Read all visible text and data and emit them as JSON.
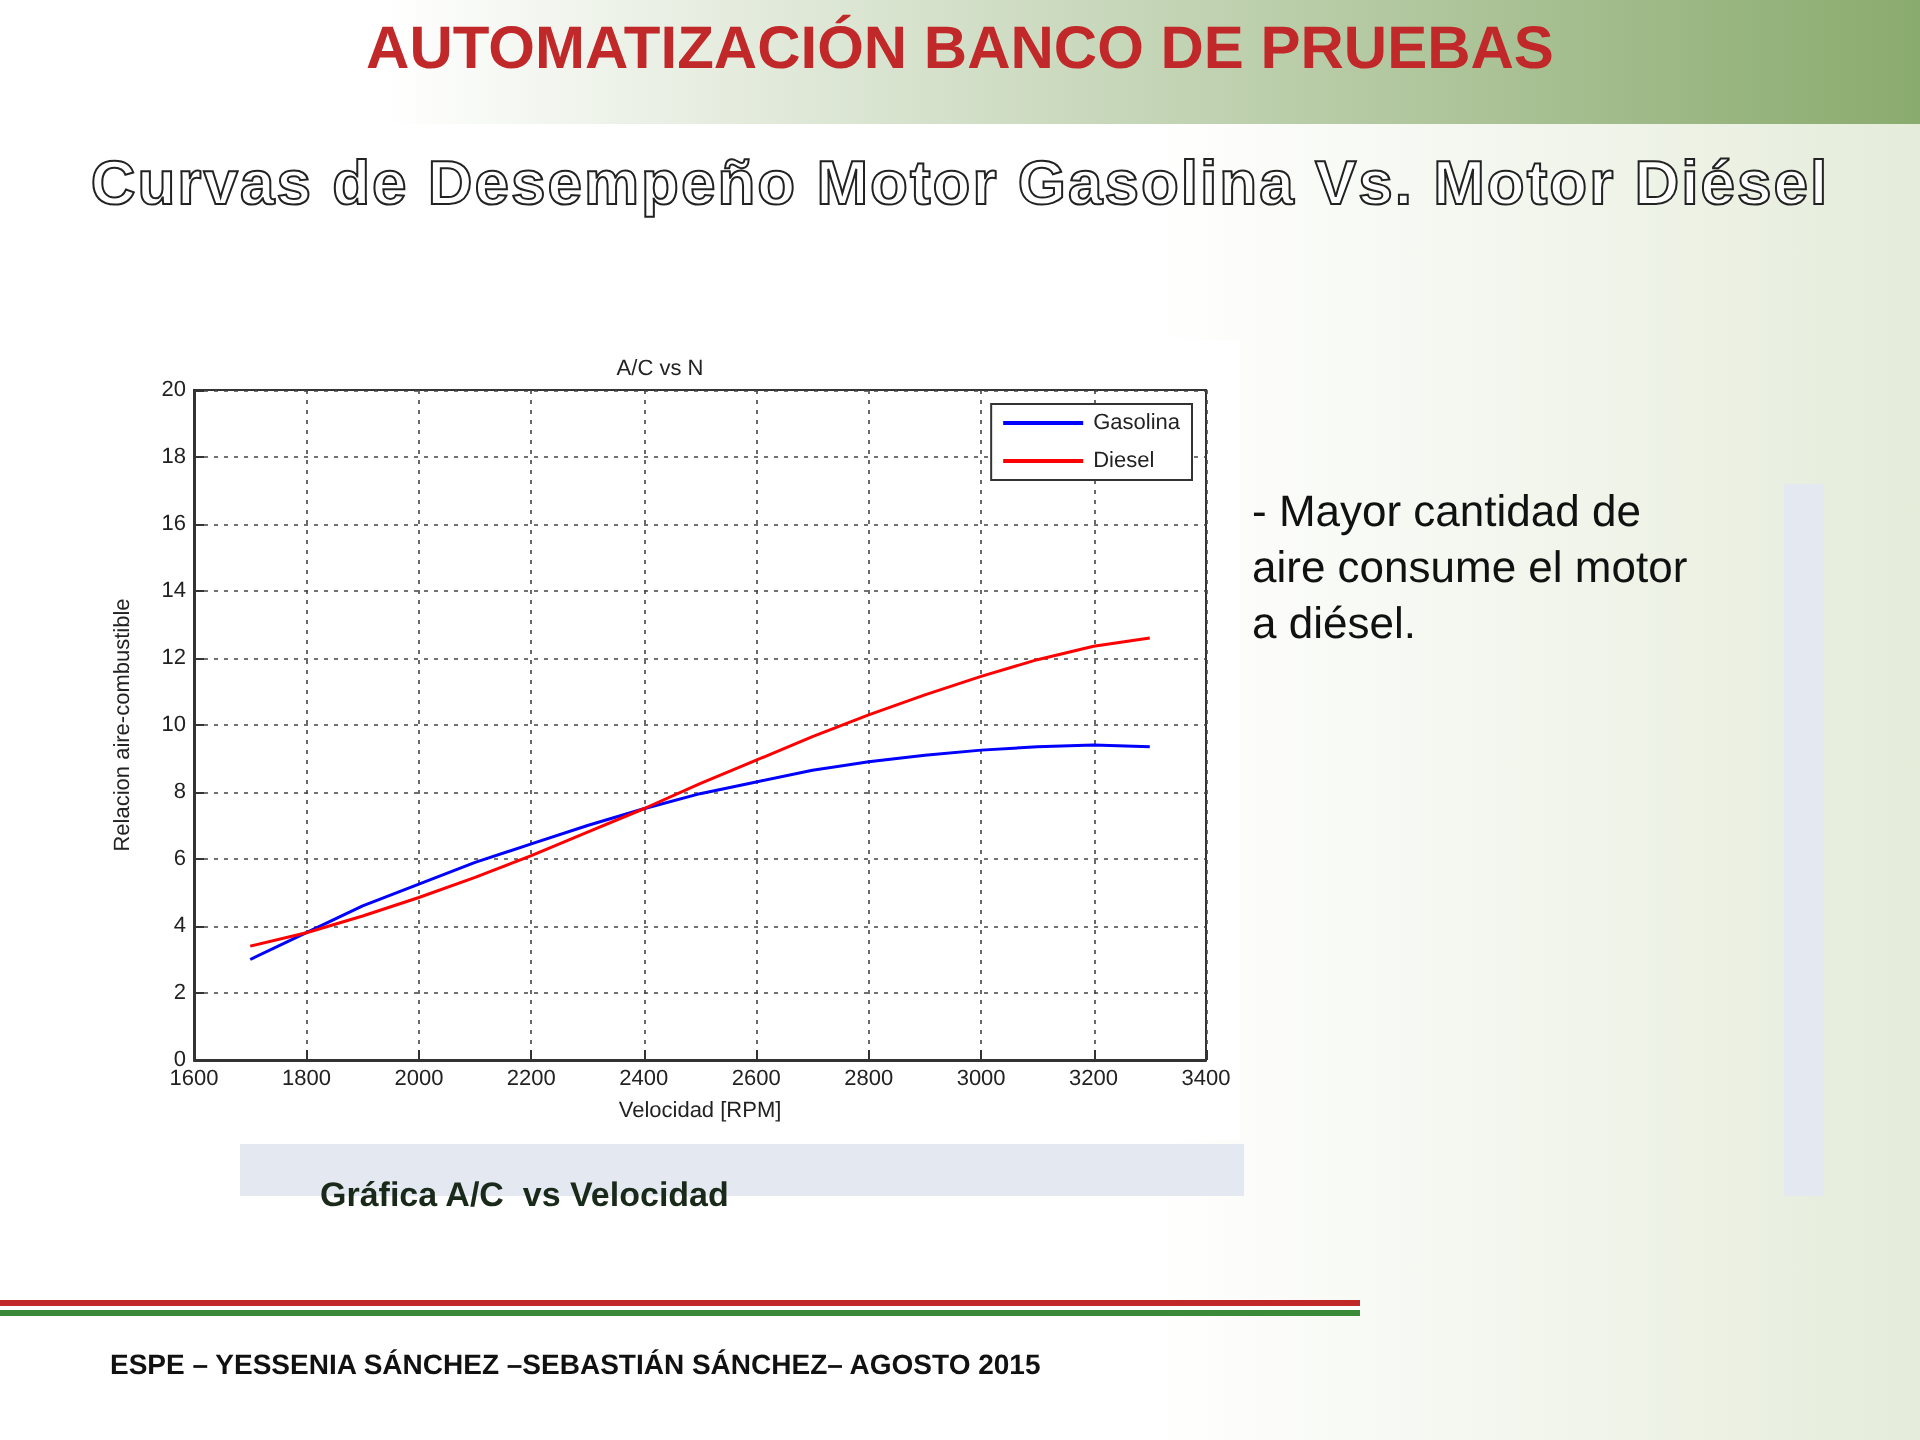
{
  "chart_data": {
    "type": "line",
    "title": "A/C vs N",
    "xlabel": "Velocidad [RPM]",
    "ylabel": "Relacion aire-combustible",
    "x": [
      1700,
      1800,
      1900,
      2000,
      2100,
      2200,
      2300,
      2400,
      2500,
      2600,
      2700,
      2800,
      2900,
      3000,
      3100,
      3200,
      3300
    ],
    "series": [
      {
        "name": "Gasolina",
        "color": "#0000ff",
        "values": [
          3.0,
          3.8,
          4.6,
          5.25,
          5.9,
          6.45,
          7.0,
          7.5,
          7.95,
          8.3,
          8.65,
          8.9,
          9.1,
          9.25,
          9.35,
          9.4,
          9.35
        ]
      },
      {
        "name": "Diesel",
        "color": "#ff0000",
        "values": [
          3.4,
          3.8,
          4.3,
          4.85,
          5.45,
          6.1,
          6.8,
          7.5,
          8.25,
          8.95,
          9.65,
          10.3,
          10.9,
          11.45,
          11.95,
          12.35,
          12.6
        ]
      }
    ],
    "xlim": [
      1600,
      3400
    ],
    "xticks": [
      1600,
      1800,
      2000,
      2200,
      2400,
      2600,
      2800,
      3000,
      3200,
      3400
    ],
    "ylim": [
      0,
      20
    ],
    "yticks": [
      0,
      2,
      4,
      6,
      8,
      10,
      12,
      14,
      16,
      18,
      20
    ],
    "grid": true,
    "legend": "top right",
    "marker": "none",
    "line_style": "solid",
    "annotations": [
      "AUTOMATIZACIÓN BANCO DE PRUEBAS",
      "Curvas de Desempeño Motor Gasolina Vs. Motor Diésel",
      "- Mayor cantidad de aire consume el motor a diésel.",
      "Gráfica A/C  vs Velocidad",
      "ESPE – YESSENIA SÁNCHEZ –SEBASTIÁN SÁNCHEZ– AGOSTO 2015"
    ]
  }
}
